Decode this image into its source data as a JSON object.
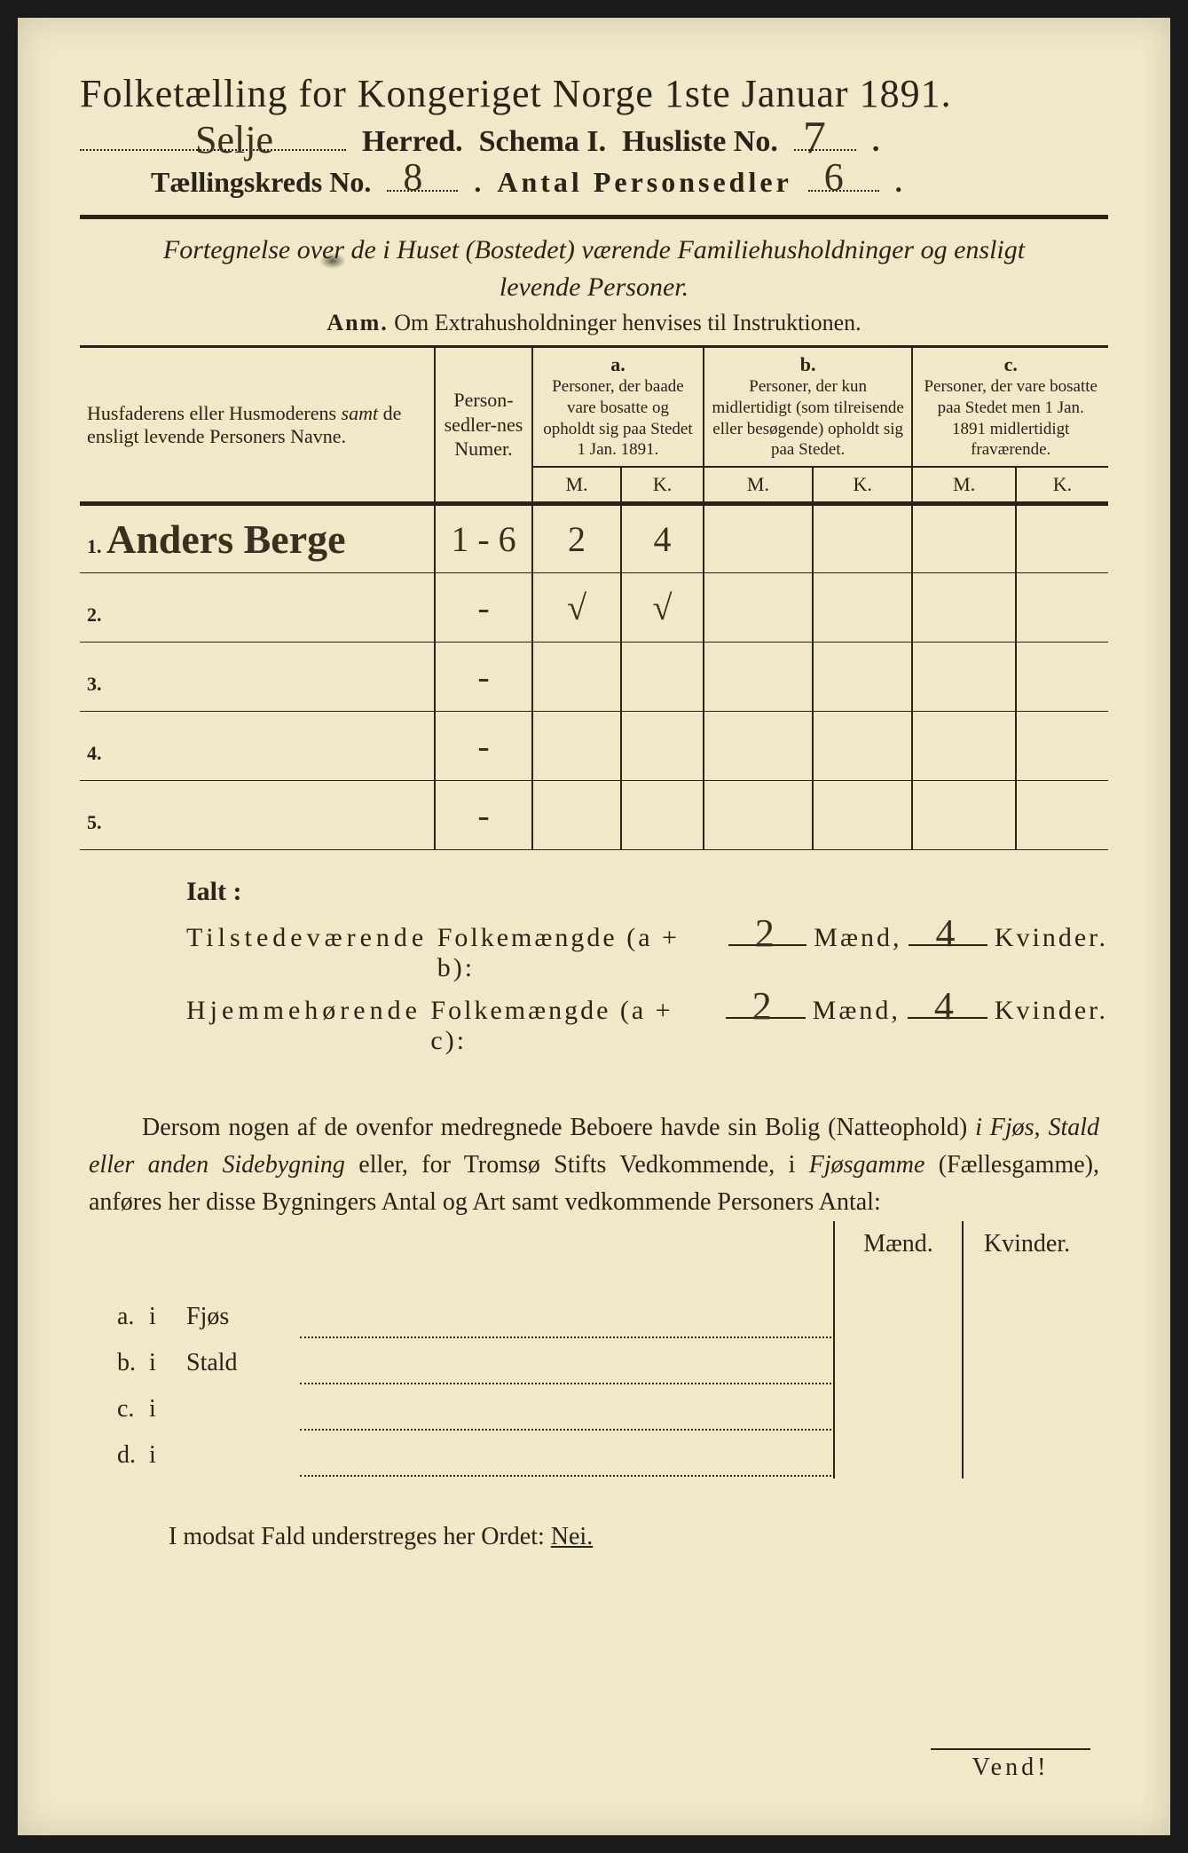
{
  "colors": {
    "paper": "#f0e8c8",
    "ink": "#2a2318",
    "handwriting": "#3a3020",
    "frame": "#1a1a1a"
  },
  "header": {
    "title": "Folketælling for Kongeriget Norge 1ste Januar 1891.",
    "herred_value": "Selje",
    "herred_label": "Herred.",
    "schema_label": "Schema I.",
    "husliste_label": "Husliste No.",
    "husliste_value": "7",
    "kreds_label": "Tællingskreds No.",
    "kreds_value": "8",
    "sedler_label": "Antal Personsedler",
    "sedler_value": "6"
  },
  "subtitle": {
    "line1": "Fortegnelse over de i Huset (Bostedet) værende Familiehusholdninger og ensligt",
    "line2": "levende Personer.",
    "anm_label": "Anm.",
    "anm_text": "Om Extrahusholdninger henvises til Instruktionen."
  },
  "table": {
    "col_name": "Husfaderens eller Husmoderens samt de ensligt levende Personers Navne.",
    "col_num": "Person-sedler-nes Numer.",
    "col_a_label": "a.",
    "col_a_text": "Personer, der baade vare bosatte og opholdt sig paa Stedet 1 Jan. 1891.",
    "col_b_label": "b.",
    "col_b_text": "Personer, der kun midlertidigt (som tilreisende eller besøgende) opholdt sig paa Stedet.",
    "col_c_label": "c.",
    "col_c_text": "Personer, der vare bosatte paa Stedet men 1 Jan. 1891 midlertidigt fraværende.",
    "m": "M.",
    "k": "K.",
    "rows": [
      {
        "n": "1.",
        "name": "Anders Berge",
        "num": "1 - 6",
        "a_m": "2",
        "a_k": "4",
        "b_m": "",
        "b_k": "",
        "c_m": "",
        "c_k": ""
      },
      {
        "n": "2.",
        "name": "",
        "num": "-",
        "a_m": "√",
        "a_k": "√",
        "b_m": "",
        "b_k": "",
        "c_m": "",
        "c_k": ""
      },
      {
        "n": "3.",
        "name": "",
        "num": "-",
        "a_m": "",
        "a_k": "",
        "b_m": "",
        "b_k": "",
        "c_m": "",
        "c_k": ""
      },
      {
        "n": "4.",
        "name": "",
        "num": "-",
        "a_m": "",
        "a_k": "",
        "b_m": "",
        "b_k": "",
        "c_m": "",
        "c_k": ""
      },
      {
        "n": "5.",
        "name": "",
        "num": "-",
        "a_m": "",
        "a_k": "",
        "b_m": "",
        "b_k": "",
        "c_m": "",
        "c_k": ""
      }
    ]
  },
  "ialt": {
    "title": "Ialt :",
    "line1_a": "Tilstedeværende",
    "line1_b": "Folkemængde (a + b):",
    "line2_a": "Hjemmehørende",
    "line2_b": "Folkemængde (a + c):",
    "maend": "Mænd,",
    "kvinder": "Kvinder.",
    "v1_m": "2",
    "v1_k": "4",
    "v2_m": "2",
    "v2_k": "4"
  },
  "para": {
    "text1": "Dersom nogen af de ovenfor medregnede Beboere havde sin Bolig (Natteophold) ",
    "it1": "i Fjøs, Stald eller anden Sidebygning",
    "text2": " eller, for Tromsø Stifts Vedkommende, i ",
    "it2": "Fjøsgamme",
    "text3": " (Fællesgamme), anføres her disse Bygningers Antal og Art samt vedkommende Personers Antal:"
  },
  "mk": {
    "maend": "Mænd.",
    "kvinder": "Kvinder.",
    "rows": [
      {
        "lab": "a.",
        "i": "i",
        "word": "Fjøs"
      },
      {
        "lab": "b.",
        "i": "i",
        "word": "Stald"
      },
      {
        "lab": "c.",
        "i": "i",
        "word": ""
      },
      {
        "lab": "d.",
        "i": "i",
        "word": ""
      }
    ]
  },
  "nei": {
    "text": "I modsat Fald understreges her Ordet:",
    "word": "Nei."
  },
  "vend": "Vend!"
}
